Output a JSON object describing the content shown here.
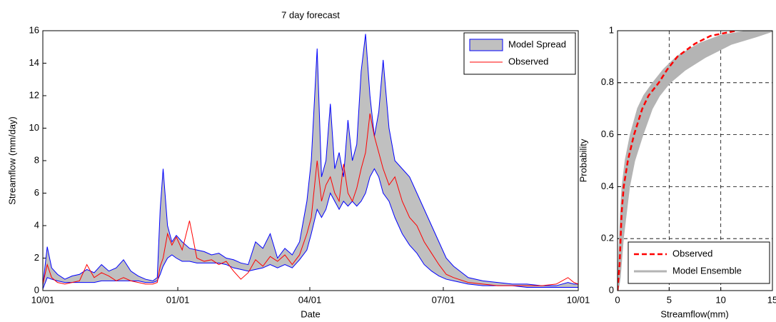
{
  "chart_data": [
    {
      "type": "band_line",
      "title": "7 day forecast",
      "x_label": "Date",
      "y_label": "Streamflow (mm/day)",
      "xlim": [
        0,
        365
      ],
      "xticks": [
        {
          "value": 0,
          "label": "10/01"
        },
        {
          "value": 92,
          "label": "01/01"
        },
        {
          "value": 182,
          "label": "04/01"
        },
        {
          "value": 273,
          "label": "07/01"
        },
        {
          "value": 365,
          "label": "10/01"
        }
      ],
      "ylim": [
        0,
        16
      ],
      "yticks": [
        0,
        2,
        4,
        6,
        8,
        10,
        12,
        14,
        16
      ],
      "grid": false,
      "legend": "upper right",
      "x": [
        0,
        3,
        6,
        10,
        15,
        20,
        25,
        30,
        35,
        40,
        45,
        50,
        55,
        60,
        65,
        70,
        75,
        78,
        80,
        82,
        85,
        88,
        91,
        95,
        100,
        105,
        110,
        115,
        120,
        125,
        130,
        135,
        140,
        145,
        150,
        155,
        160,
        165,
        170,
        175,
        180,
        183,
        187,
        190,
        193,
        196,
        199,
        202,
        205,
        208,
        211,
        214,
        217,
        220,
        223,
        226,
        229,
        232,
        236,
        240,
        245,
        250,
        255,
        260,
        265,
        270,
        275,
        280,
        290,
        300,
        310,
        320,
        330,
        340,
        350,
        358,
        362,
        365
      ],
      "series": [
        {
          "name": "Model Spread",
          "color": "#c0c0c0",
          "edge_color": "#0000ff",
          "upper": [
            0.3,
            2.7,
            1.4,
            1.0,
            0.7,
            0.9,
            1.0,
            1.3,
            1.1,
            1.6,
            1.2,
            1.4,
            1.9,
            1.2,
            0.9,
            0.7,
            0.6,
            0.8,
            5.0,
            7.5,
            4.0,
            3.0,
            3.4,
            3.0,
            2.6,
            2.5,
            2.4,
            2.2,
            2.3,
            2.0,
            1.9,
            1.7,
            1.6,
            3.0,
            2.6,
            3.5,
            2.0,
            2.6,
            2.2,
            3.0,
            5.5,
            8.0,
            14.9,
            7.0,
            8.0,
            11.5,
            7.5,
            8.5,
            7.0,
            10.5,
            8.0,
            9.0,
            13.5,
            15.8,
            12.0,
            9.5,
            11.0,
            14.2,
            10.0,
            8.0,
            7.5,
            7.0,
            6.0,
            5.0,
            4.0,
            3.0,
            2.0,
            1.5,
            0.8,
            0.6,
            0.5,
            0.4,
            0.4,
            0.3,
            0.3,
            0.5,
            0.4,
            0.4
          ],
          "lower": [
            0.1,
            0.8,
            0.7,
            0.6,
            0.5,
            0.5,
            0.5,
            0.5,
            0.5,
            0.6,
            0.6,
            0.6,
            0.6,
            0.6,
            0.6,
            0.5,
            0.5,
            0.6,
            1.0,
            1.5,
            2.0,
            2.2,
            2.0,
            1.8,
            1.8,
            1.7,
            1.7,
            1.7,
            1.7,
            1.6,
            1.4,
            1.3,
            1.2,
            1.3,
            1.4,
            1.6,
            1.4,
            1.6,
            1.4,
            1.9,
            2.5,
            3.5,
            5.0,
            4.5,
            5.0,
            6.0,
            5.5,
            5.0,
            5.5,
            5.2,
            5.5,
            5.2,
            5.5,
            6.0,
            7.0,
            7.5,
            7.0,
            6.0,
            5.5,
            4.5,
            3.5,
            2.8,
            2.3,
            1.6,
            1.2,
            0.9,
            0.7,
            0.6,
            0.4,
            0.3,
            0.3,
            0.3,
            0.2,
            0.2,
            0.2,
            0.2,
            0.2,
            0.2
          ]
        },
        {
          "name": "Observed",
          "color": "#ff0000",
          "values": [
            0.4,
            1.6,
            0.8,
            0.5,
            0.4,
            0.5,
            0.6,
            1.6,
            0.8,
            1.1,
            0.9,
            0.6,
            0.8,
            0.6,
            0.5,
            0.4,
            0.4,
            0.5,
            1.5,
            2.0,
            3.5,
            2.8,
            3.3,
            2.5,
            4.3,
            2.0,
            1.8,
            1.9,
            1.6,
            1.8,
            1.2,
            0.7,
            1.1,
            1.9,
            1.5,
            2.1,
            1.8,
            2.2,
            1.6,
            2.2,
            3.5,
            4.5,
            8.0,
            5.5,
            6.5,
            7.0,
            6.0,
            5.5,
            7.8,
            6.0,
            5.5,
            6.3,
            7.5,
            8.5,
            10.9,
            9.5,
            8.5,
            7.5,
            6.5,
            7.0,
            5.5,
            4.5,
            4.0,
            3.0,
            2.3,
            1.6,
            1.0,
            0.8,
            0.5,
            0.4,
            0.3,
            0.3,
            0.3,
            0.3,
            0.4,
            0.8,
            0.5,
            0.4
          ]
        }
      ]
    },
    {
      "type": "cdf",
      "x_label": "Streamflow(mm)",
      "y_label": "Probability",
      "xlim": [
        0,
        15
      ],
      "xticks": [
        0,
        5,
        10,
        15
      ],
      "ylim": [
        0,
        1
      ],
      "yticks": [
        0,
        0.2,
        0.4,
        0.6,
        0.8,
        1
      ],
      "grid": true,
      "legend": "lower right",
      "series": [
        {
          "name": "Observed",
          "color": "#ff0000",
          "dashed": true,
          "x": [
            0,
            0.1,
            0.2,
            0.3,
            0.4,
            0.6,
            1.0,
            1.6,
            2.4,
            3.0,
            4.0,
            4.8,
            5.8,
            7.5,
            9,
            11.5
          ],
          "values": [
            0,
            0.05,
            0.1,
            0.2,
            0.3,
            0.4,
            0.5,
            0.6,
            0.7,
            0.75,
            0.8,
            0.85,
            0.9,
            0.95,
            0.98,
            1
          ]
        },
        {
          "name": "Model Ensemble",
          "color": "#b4b4b4",
          "x_low": [
            0,
            0.1,
            0.15,
            0.25,
            0.35,
            0.5,
            0.8,
            1.3,
            2.0,
            2.6,
            3.5,
            4.5,
            5.8,
            8,
            10,
            13
          ],
          "x_high": [
            0,
            0.2,
            0.3,
            0.5,
            0.8,
            1.1,
            1.6,
            2.4,
            3.3,
            4.0,
            5.0,
            6.5,
            8.5,
            11,
            13.5,
            15
          ],
          "values": [
            0,
            0.05,
            0.1,
            0.2,
            0.3,
            0.4,
            0.5,
            0.6,
            0.7,
            0.75,
            0.8,
            0.85,
            0.9,
            0.95,
            0.98,
            1
          ]
        }
      ]
    }
  ]
}
